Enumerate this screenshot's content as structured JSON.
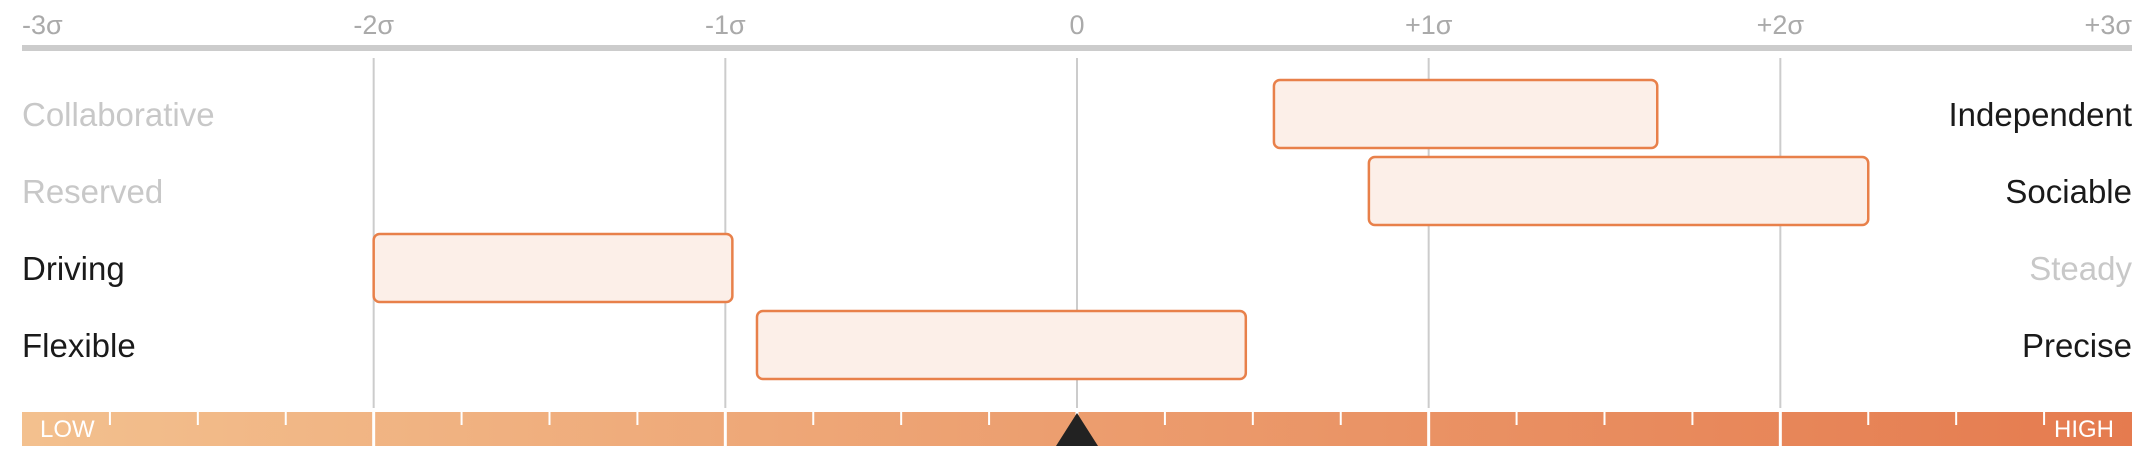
{
  "chart_data": {
    "type": "range-bar",
    "x_ticks": [
      "-3σ",
      "-2σ",
      "-1σ",
      "0",
      "+1σ",
      "+2σ",
      "+3σ"
    ],
    "xlim": [
      -3,
      3
    ],
    "grid": true,
    "rows": [
      {
        "left": "Collaborative",
        "right": "Independent",
        "low": 0.56,
        "high": 1.65,
        "emphasis": "right"
      },
      {
        "left": "Reserved",
        "right": "Sociable",
        "low": 0.83,
        "high": 2.25,
        "emphasis": "right"
      },
      {
        "left": "Driving",
        "right": "Steady",
        "low": -2.0,
        "high": -0.98,
        "emphasis": "left"
      },
      {
        "left": "Flexible",
        "right": "Precise",
        "low": -0.91,
        "high": 0.48,
        "emphasis": "both"
      }
    ],
    "marker_value": 0,
    "scale_low_label": "LOW",
    "scale_high_label": "HIGH",
    "colors": {
      "bar_stroke": "#e8804a",
      "bar_fill": "#fcefe8",
      "emphasis_text": "#1a1a1a",
      "muted_text": "#c8c8c8",
      "tick_text": "#aaaaaa",
      "grid": "#cccccc",
      "gradient_start": "#f3c08e",
      "gradient_end": "#e57b4f",
      "marker": "#222222"
    }
  }
}
